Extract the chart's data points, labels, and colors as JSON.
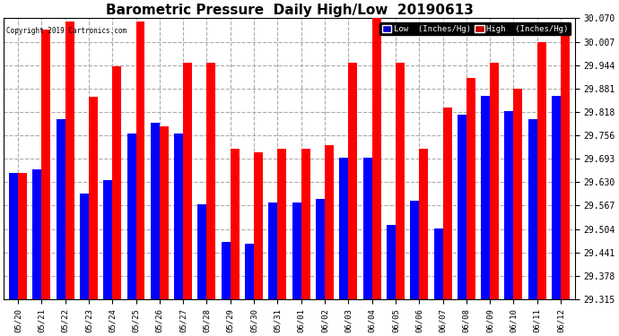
{
  "title": "Barometric Pressure  Daily High/Low  20190613",
  "copyright": "Copyright 2019 Cartronics.com",
  "legend_low": "Low  (Inches/Hg)",
  "legend_high": "High  (Inches/Hg)",
  "low_color": "#0000ff",
  "high_color": "#ff0000",
  "legend_low_bg": "#0000cc",
  "legend_high_bg": "#cc0000",
  "background_color": "#ffffff",
  "grid_color": "#aaaaaa",
  "categories": [
    "05/20",
    "05/21",
    "05/22",
    "05/23",
    "05/24",
    "05/25",
    "05/26",
    "05/27",
    "05/28",
    "05/29",
    "05/30",
    "05/31",
    "06/01",
    "06/02",
    "06/03",
    "06/04",
    "06/05",
    "06/06",
    "06/07",
    "06/08",
    "06/09",
    "06/10",
    "06/11",
    "06/12"
  ],
  "low_values": [
    29.655,
    29.665,
    29.8,
    29.6,
    29.635,
    29.76,
    29.79,
    29.76,
    29.57,
    29.47,
    29.465,
    29.575,
    29.575,
    29.585,
    29.695,
    29.695,
    29.515,
    29.58,
    29.505,
    29.81,
    29.862,
    29.82,
    29.8,
    29.862
  ],
  "high_values": [
    29.655,
    30.04,
    30.06,
    29.86,
    29.94,
    30.06,
    29.78,
    29.95,
    29.95,
    29.72,
    29.71,
    29.72,
    29.72,
    29.73,
    29.95,
    30.07,
    29.95,
    29.72,
    29.83,
    29.91,
    29.95,
    29.88,
    30.007,
    30.025
  ],
  "ylim_min": 29.315,
  "ylim_max": 30.07,
  "yticks": [
    29.315,
    29.378,
    29.441,
    29.504,
    29.567,
    29.63,
    29.693,
    29.756,
    29.818,
    29.881,
    29.944,
    30.007,
    30.07
  ],
  "bar_width": 0.38,
  "title_fontsize": 11,
  "tick_fontsize": 6.5,
  "ytick_fontsize": 7
}
